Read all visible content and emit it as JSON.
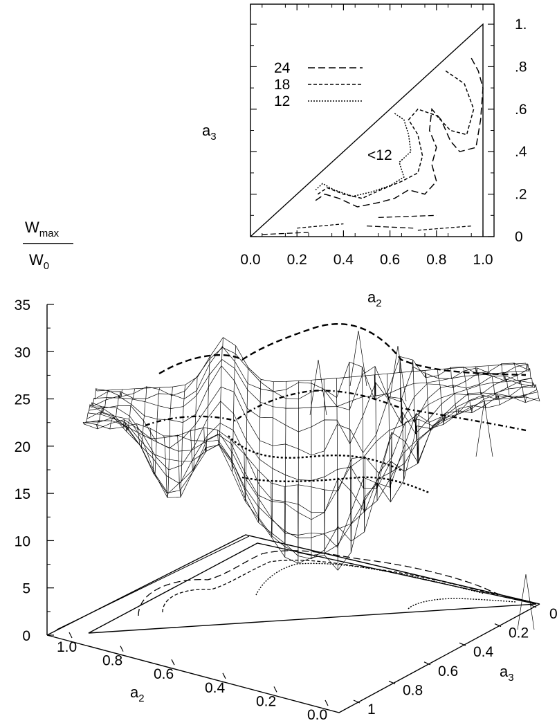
{
  "chart_data": [
    {
      "type": "contour",
      "xlabel": "a",
      "xlabel_sub": "2",
      "ylabel": "a",
      "ylabel_sub": "3",
      "xlim": [
        0,
        1
      ],
      "ylim": [
        0,
        1
      ],
      "x_ticks": [
        "0.0",
        "0.2",
        "0.4",
        "0.6",
        "0.8",
        "1.0"
      ],
      "x_tick_values": [
        0,
        0.2,
        0.4,
        0.6,
        0.8,
        1.0
      ],
      "y_ticks": [
        "0",
        ".2",
        ".4",
        ".6",
        ".8",
        "1."
      ],
      "y_tick_values": [
        0,
        0.2,
        0.4,
        0.6,
        0.8,
        1.0
      ],
      "legend": [
        {
          "label": "24",
          "dash": "10,5"
        },
        {
          "label": "18",
          "dash": "5,3"
        },
        {
          "label": "12",
          "dash": "2,2"
        }
      ],
      "annotation": "<12",
      "levels": [
        {
          "level": 24,
          "dash": "10,5",
          "points": [
            [
              0.95,
              0.84
            ],
            [
              0.98,
              0.78
            ],
            [
              1.0,
              0.7
            ],
            [
              0.99,
              0.55
            ],
            [
              0.97,
              0.42
            ],
            [
              0.9,
              0.4
            ],
            [
              0.86,
              0.45
            ],
            [
              0.82,
              0.55
            ],
            [
              0.78,
              0.6
            ],
            [
              0.77,
              0.5
            ],
            [
              0.8,
              0.42
            ],
            [
              0.78,
              0.34
            ],
            [
              0.8,
              0.26
            ],
            [
              0.75,
              0.2
            ],
            [
              0.68,
              0.22
            ],
            [
              0.62,
              0.18
            ],
            [
              0.55,
              0.16
            ],
            [
              0.46,
              0.14
            ],
            [
              0.38,
              0.18
            ],
            [
              0.32,
              0.2
            ],
            [
              0.28,
              0.17
            ]
          ]
        },
        {
          "level": 18,
          "dash": "5,3",
          "points": [
            [
              0.84,
              0.78
            ],
            [
              0.92,
              0.72
            ],
            [
              0.96,
              0.6
            ],
            [
              0.93,
              0.48
            ],
            [
              0.86,
              0.5
            ],
            [
              0.8,
              0.57
            ],
            [
              0.72,
              0.6
            ],
            [
              0.68,
              0.55
            ],
            [
              0.72,
              0.48
            ],
            [
              0.74,
              0.38
            ],
            [
              0.72,
              0.3
            ],
            [
              0.65,
              0.26
            ],
            [
              0.56,
              0.22
            ],
            [
              0.48,
              0.18
            ],
            [
              0.4,
              0.2
            ],
            [
              0.33,
              0.23
            ],
            [
              0.29,
              0.2
            ]
          ]
        },
        {
          "level": 12,
          "dash": "2,2",
          "points": [
            [
              0.62,
              0.58
            ],
            [
              0.66,
              0.55
            ],
            [
              0.68,
              0.48
            ],
            [
              0.69,
              0.4
            ],
            [
              0.64,
              0.35
            ],
            [
              0.66,
              0.28
            ],
            [
              0.6,
              0.24
            ],
            [
              0.52,
              0.21
            ],
            [
              0.44,
              0.19
            ],
            [
              0.36,
              0.22
            ],
            [
              0.31,
              0.25
            ],
            [
              0.28,
              0.22
            ]
          ]
        }
      ]
    },
    {
      "type": "surface3d",
      "zlabel": "W",
      "zlabel_sub": "max",
      "zlabel_den": "W",
      "zlabel_den_sub": "0",
      "xlabel": "a",
      "xlabel_sub": "2",
      "ylabel": "a",
      "ylabel_sub": "3",
      "z_ticks": [
        "0",
        "5",
        "10",
        "15",
        "20",
        "25",
        "30",
        "35"
      ],
      "z_tick_values": [
        0,
        5,
        10,
        15,
        20,
        25,
        30,
        35
      ],
      "x_ticks": [
        "1.0",
        "0.8",
        "0.6",
        "0.4",
        "0.2",
        "0.0"
      ],
      "x_tick_values": [
        1.0,
        0.8,
        0.6,
        0.4,
        0.2,
        0.0
      ],
      "y_ticks": [
        "0",
        "0.2",
        "0.4",
        "0.6",
        "0.8",
        "1"
      ],
      "y_tick_values": [
        0,
        0.2,
        0.4,
        0.6,
        0.8,
        1.0
      ],
      "zlim": [
        0,
        35
      ]
    }
  ]
}
